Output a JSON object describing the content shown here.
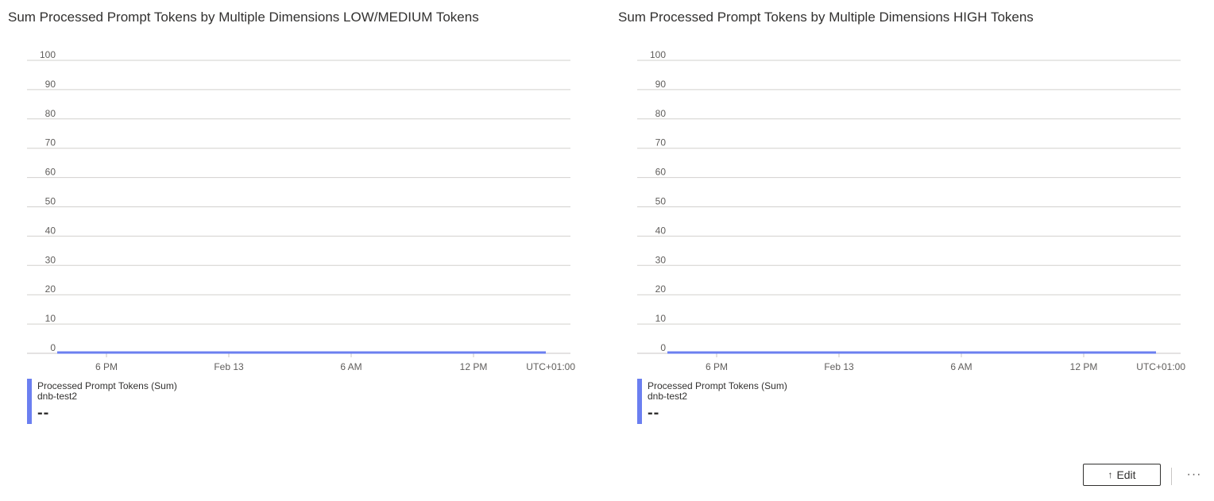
{
  "panels": [
    {
      "title": "Sum Processed Prompt Tokens by Multiple Dimensions LOW/MEDIUM Tokens",
      "legend": {
        "metric": "Processed Prompt Tokens (Sum)",
        "resource": "dnb-test2",
        "value": "--"
      }
    },
    {
      "title": "Sum Processed Prompt Tokens by Multiple Dimensions HIGH Tokens",
      "legend": {
        "metric": "Processed Prompt Tokens (Sum)",
        "resource": "dnb-test2",
        "value": "--"
      }
    }
  ],
  "chart_data": [
    {
      "type": "line",
      "title": "Sum Processed Prompt Tokens by Multiple Dimensions LOW/MEDIUM Tokens",
      "ylim": [
        0,
        100
      ],
      "y_ticks": [
        "100",
        "90",
        "80",
        "70",
        "60",
        "50",
        "40",
        "30",
        "20",
        "10",
        "0"
      ],
      "x_ticks": [
        "6 PM",
        "Feb 13",
        "6 AM",
        "12 PM"
      ],
      "timezone_label": "UTC+01:00",
      "grid": true,
      "series": [
        {
          "name": "Processed Prompt Tokens (Sum)",
          "color": "#6b7ff0",
          "values": [
            0,
            0,
            0,
            0,
            0
          ]
        }
      ]
    },
    {
      "type": "line",
      "title": "Sum Processed Prompt Tokens by Multiple Dimensions HIGH Tokens",
      "ylim": [
        0,
        100
      ],
      "y_ticks": [
        "100",
        "90",
        "80",
        "70",
        "60",
        "50",
        "40",
        "30",
        "20",
        "10",
        "0"
      ],
      "x_ticks": [
        "6 PM",
        "Feb 13",
        "6 AM",
        "12 PM"
      ],
      "timezone_label": "UTC+01:00",
      "grid": true,
      "series": [
        {
          "name": "Processed Prompt Tokens (Sum)",
          "color": "#6b7ff0",
          "values": [
            0,
            0,
            0,
            0,
            0
          ]
        }
      ]
    }
  ],
  "footer": {
    "edit_label": "Edit",
    "edit_icon": "arrow-up-icon",
    "more_label": "···"
  }
}
